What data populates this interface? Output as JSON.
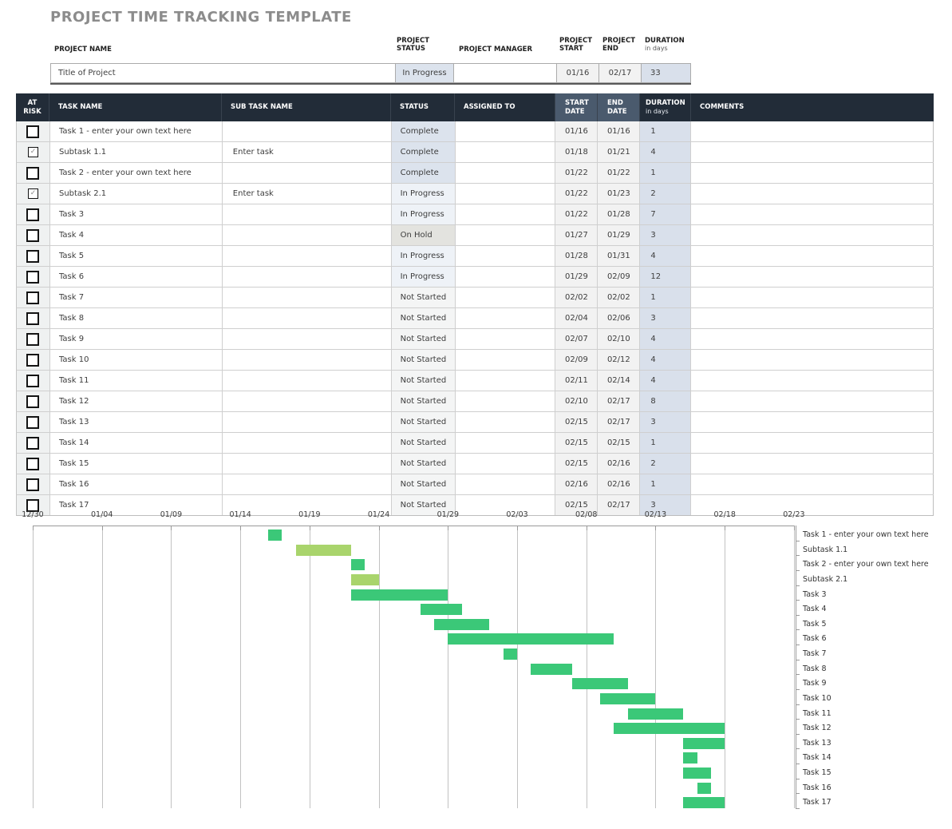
{
  "title": "PROJECT TIME TRACKING TEMPLATE",
  "project_info": {
    "name_label": "PROJECT NAME",
    "status_label": "PROJECT STATUS",
    "manager_label": "PROJECT MANAGER",
    "start_label": "PROJECT START",
    "end_label": "PROJECT END",
    "duration_label": "DURATION",
    "duration_sublabel": "in days",
    "name_value": "Title of Project",
    "status_value": "In Progress",
    "manager_value": "",
    "start_value": "01/16",
    "end_value": "02/17",
    "duration_value": "33"
  },
  "table": {
    "columns": [
      {
        "label": "AT RISK"
      },
      {
        "label": "TASK NAME"
      },
      {
        "label": "SUB TASK NAME"
      },
      {
        "label": "STATUS"
      },
      {
        "label": "ASSIGNED TO"
      },
      {
        "label": "START DATE"
      },
      {
        "label": "END DATE"
      },
      {
        "label": "DURATION",
        "sub": "in days"
      },
      {
        "label": "COMMENTS"
      }
    ],
    "rows": [
      {
        "at_risk": false,
        "task": "Task 1 - enter your own text here",
        "subtask": "",
        "status": "Complete",
        "assigned_to": "",
        "start": "01/16",
        "end": "01/16",
        "duration": 1,
        "comments": "",
        "is_subtask": false
      },
      {
        "at_risk": true,
        "task": "Subtask 1.1",
        "subtask": "Enter task",
        "status": "Complete",
        "assigned_to": "",
        "start": "01/18",
        "end": "01/21",
        "duration": 4,
        "comments": "",
        "is_subtask": true
      },
      {
        "at_risk": false,
        "task": "Task 2 - enter your own text here",
        "subtask": "",
        "status": "Complete",
        "assigned_to": "",
        "start": "01/22",
        "end": "01/22",
        "duration": 1,
        "comments": "",
        "is_subtask": false
      },
      {
        "at_risk": true,
        "task": "Subtask 2.1",
        "subtask": "Enter task",
        "status": "In Progress",
        "assigned_to": "",
        "start": "01/22",
        "end": "01/23",
        "duration": 2,
        "comments": "",
        "is_subtask": true
      },
      {
        "at_risk": false,
        "task": "Task 3",
        "subtask": "",
        "status": "In Progress",
        "assigned_to": "",
        "start": "01/22",
        "end": "01/28",
        "duration": 7,
        "comments": "",
        "is_subtask": false
      },
      {
        "at_risk": false,
        "task": "Task 4",
        "subtask": "",
        "status": "On Hold",
        "assigned_to": "",
        "start": "01/27",
        "end": "01/29",
        "duration": 3,
        "comments": "",
        "is_subtask": false
      },
      {
        "at_risk": false,
        "task": "Task 5",
        "subtask": "",
        "status": "In Progress",
        "assigned_to": "",
        "start": "01/28",
        "end": "01/31",
        "duration": 4,
        "comments": "",
        "is_subtask": false
      },
      {
        "at_risk": false,
        "task": "Task 6",
        "subtask": "",
        "status": "In Progress",
        "assigned_to": "",
        "start": "01/29",
        "end": "02/09",
        "duration": 12,
        "comments": "",
        "is_subtask": false
      },
      {
        "at_risk": false,
        "task": "Task 7",
        "subtask": "",
        "status": "Not Started",
        "assigned_to": "",
        "start": "02/02",
        "end": "02/02",
        "duration": 1,
        "comments": "",
        "is_subtask": false
      },
      {
        "at_risk": false,
        "task": "Task 8",
        "subtask": "",
        "status": "Not Started",
        "assigned_to": "",
        "start": "02/04",
        "end": "02/06",
        "duration": 3,
        "comments": "",
        "is_subtask": false
      },
      {
        "at_risk": false,
        "task": "Task 9",
        "subtask": "",
        "status": "Not Started",
        "assigned_to": "",
        "start": "02/07",
        "end": "02/10",
        "duration": 4,
        "comments": "",
        "is_subtask": false
      },
      {
        "at_risk": false,
        "task": "Task 10",
        "subtask": "",
        "status": "Not Started",
        "assigned_to": "",
        "start": "02/09",
        "end": "02/12",
        "duration": 4,
        "comments": "",
        "is_subtask": false
      },
      {
        "at_risk": false,
        "task": "Task 11",
        "subtask": "",
        "status": "Not Started",
        "assigned_to": "",
        "start": "02/11",
        "end": "02/14",
        "duration": 4,
        "comments": "",
        "is_subtask": false
      },
      {
        "at_risk": false,
        "task": "Task 12",
        "subtask": "",
        "status": "Not Started",
        "assigned_to": "",
        "start": "02/10",
        "end": "02/17",
        "duration": 8,
        "comments": "",
        "is_subtask": false
      },
      {
        "at_risk": false,
        "task": "Task 13",
        "subtask": "",
        "status": "Not Started",
        "assigned_to": "",
        "start": "02/15",
        "end": "02/17",
        "duration": 3,
        "comments": "",
        "is_subtask": false
      },
      {
        "at_risk": false,
        "task": "Task 14",
        "subtask": "",
        "status": "Not Started",
        "assigned_to": "",
        "start": "02/15",
        "end": "02/15",
        "duration": 1,
        "comments": "",
        "is_subtask": false
      },
      {
        "at_risk": false,
        "task": "Task 15",
        "subtask": "",
        "status": "Not Started",
        "assigned_to": "",
        "start": "02/15",
        "end": "02/16",
        "duration": 2,
        "comments": "",
        "is_subtask": false
      },
      {
        "at_risk": false,
        "task": "Task 16",
        "subtask": "",
        "status": "Not Started",
        "assigned_to": "",
        "start": "02/16",
        "end": "02/16",
        "duration": 1,
        "comments": "",
        "is_subtask": false
      },
      {
        "at_risk": false,
        "task": "Task 17",
        "subtask": "",
        "status": "Not Started",
        "assigned_to": "",
        "start": "02/15",
        "end": "02/17",
        "duration": 3,
        "comments": "",
        "is_subtask": false
      }
    ]
  },
  "checkbox_check_glyph": "✓",
  "colors": {
    "title_gray": "#8c8c8c",
    "header_bg": "#222c38",
    "header_slate_bg": "#4a5a6d",
    "risk_cell_bg": "#eff1f1",
    "date_cell_bg": "#f2f2f2",
    "duration_cell_bg": "#d9e0eb",
    "info_status_bg": "#dce3ed",
    "status_colors": {
      "Complete": "#dce3ed",
      "In Progress": "#eef2f7",
      "On Hold": "#e3e3df",
      "Not Started": "#f4f5f5"
    },
    "bar_green": "#3bc878",
    "bar_light_green": "#a9d46c"
  },
  "chart_data": {
    "type": "gantt",
    "axis_ticks": [
      "12/30",
      "01/04",
      "01/09",
      "01/14",
      "01/19",
      "01/24",
      "01/29",
      "02/03",
      "02/08",
      "02/13",
      "02/18",
      "02/23"
    ],
    "bars": [
      {
        "label": "Task 1 - enter your own text here",
        "start": "01/16",
        "end": "01/16",
        "duration": 1,
        "subtask": false
      },
      {
        "label": "Subtask 1.1",
        "start": "01/18",
        "end": "01/21",
        "duration": 4,
        "subtask": true
      },
      {
        "label": "Task 2 - enter your own text here",
        "start": "01/22",
        "end": "01/22",
        "duration": 1,
        "subtask": false
      },
      {
        "label": "Subtask 2.1",
        "start": "01/22",
        "end": "01/23",
        "duration": 2,
        "subtask": true
      },
      {
        "label": "Task 3",
        "start": "01/22",
        "end": "01/28",
        "duration": 7,
        "subtask": false
      },
      {
        "label": "Task 4",
        "start": "01/27",
        "end": "01/29",
        "duration": 3,
        "subtask": false
      },
      {
        "label": "Task 5",
        "start": "01/28",
        "end": "01/31",
        "duration": 4,
        "subtask": false
      },
      {
        "label": "Task 6",
        "start": "01/29",
        "end": "02/09",
        "duration": 12,
        "subtask": false
      },
      {
        "label": "Task 7",
        "start": "02/02",
        "end": "02/02",
        "duration": 1,
        "subtask": false
      },
      {
        "label": "Task 8",
        "start": "02/04",
        "end": "02/06",
        "duration": 3,
        "subtask": false
      },
      {
        "label": "Task 9",
        "start": "02/07",
        "end": "02/10",
        "duration": 4,
        "subtask": false
      },
      {
        "label": "Task 10",
        "start": "02/09",
        "end": "02/12",
        "duration": 4,
        "subtask": false
      },
      {
        "label": "Task 11",
        "start": "02/11",
        "end": "02/14",
        "duration": 4,
        "subtask": false
      },
      {
        "label": "Task 12",
        "start": "02/10",
        "end": "02/17",
        "duration": 8,
        "subtask": false
      },
      {
        "label": "Task 13",
        "start": "02/15",
        "end": "02/17",
        "duration": 3,
        "subtask": false
      },
      {
        "label": "Task 14",
        "start": "02/15",
        "end": "02/15",
        "duration": 1,
        "subtask": false
      },
      {
        "label": "Task 15",
        "start": "02/15",
        "end": "02/16",
        "duration": 2,
        "subtask": false
      },
      {
        "label": "Task 16",
        "start": "02/16",
        "end": "02/16",
        "duration": 1,
        "subtask": false
      },
      {
        "label": "Task 17",
        "start": "02/15",
        "end": "02/17",
        "duration": 3,
        "subtask": false
      }
    ],
    "x_axis_position": "top",
    "row_labels_position": "right",
    "grid": true
  }
}
